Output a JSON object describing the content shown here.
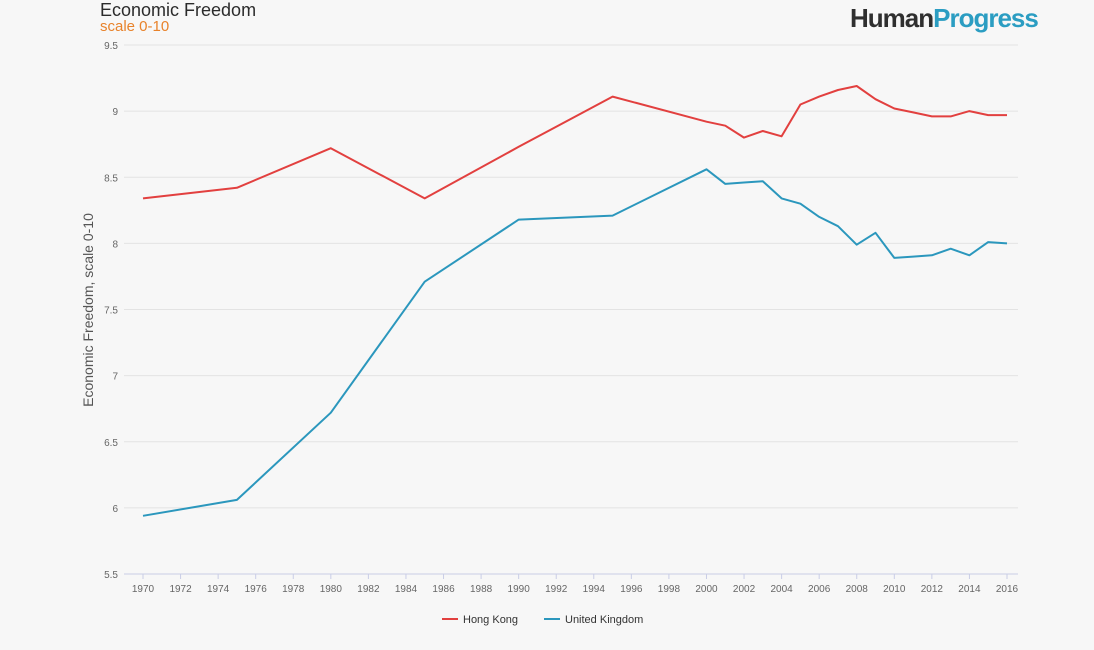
{
  "chart_data": {
    "type": "line",
    "title": "Economic Freedom",
    "subtitle": "scale 0-10",
    "brand": {
      "part1": "Human",
      "part2": "Progress"
    },
    "ylabel": "Economic Freedom, scale 0-10",
    "xlabel": "",
    "ylim": [
      5.5,
      9.5
    ],
    "xlim": [
      1970,
      2016
    ],
    "yticks": [
      5.5,
      6,
      6.5,
      7,
      7.5,
      8,
      8.5,
      9,
      9.5
    ],
    "ytick_labels": [
      "5.5",
      "6",
      "6.5",
      "7",
      "7.5",
      "8",
      "8.5",
      "9",
      "9.5"
    ],
    "xticks": [
      1970,
      1972,
      1974,
      1976,
      1978,
      1980,
      1982,
      1984,
      1986,
      1988,
      1990,
      1992,
      1994,
      1996,
      1998,
      2000,
      2002,
      2004,
      2006,
      2008,
      2010,
      2012,
      2014,
      2016
    ],
    "grid": true,
    "legend_position": "bottom",
    "series": [
      {
        "name": "Hong Kong",
        "color": "#e2403f",
        "x": [
          1970,
          1975,
          1980,
          1985,
          1990,
          1995,
          2000,
          2001,
          2002,
          2003,
          2004,
          2005,
          2006,
          2007,
          2008,
          2009,
          2010,
          2011,
          2012,
          2013,
          2014,
          2015,
          2016
        ],
        "values": [
          8.34,
          8.42,
          8.72,
          8.34,
          8.73,
          9.11,
          8.92,
          8.89,
          8.8,
          8.85,
          8.81,
          9.05,
          9.11,
          9.16,
          9.19,
          9.09,
          9.02,
          8.99,
          8.96,
          8.96,
          9.0,
          8.97,
          8.97
        ]
      },
      {
        "name": "United Kingdom",
        "color": "#2b97bd",
        "x": [
          1970,
          1975,
          1980,
          1985,
          1990,
          1995,
          2000,
          2001,
          2002,
          2003,
          2004,
          2005,
          2006,
          2007,
          2008,
          2009,
          2010,
          2011,
          2012,
          2013,
          2014,
          2015,
          2016
        ],
        "values": [
          5.94,
          6.06,
          6.72,
          7.71,
          8.18,
          8.21,
          8.56,
          8.45,
          8.46,
          8.47,
          8.34,
          8.3,
          8.2,
          8.13,
          7.99,
          8.08,
          7.89,
          7.9,
          7.91,
          7.96,
          7.91,
          8.01,
          8.0
        ]
      }
    ]
  }
}
